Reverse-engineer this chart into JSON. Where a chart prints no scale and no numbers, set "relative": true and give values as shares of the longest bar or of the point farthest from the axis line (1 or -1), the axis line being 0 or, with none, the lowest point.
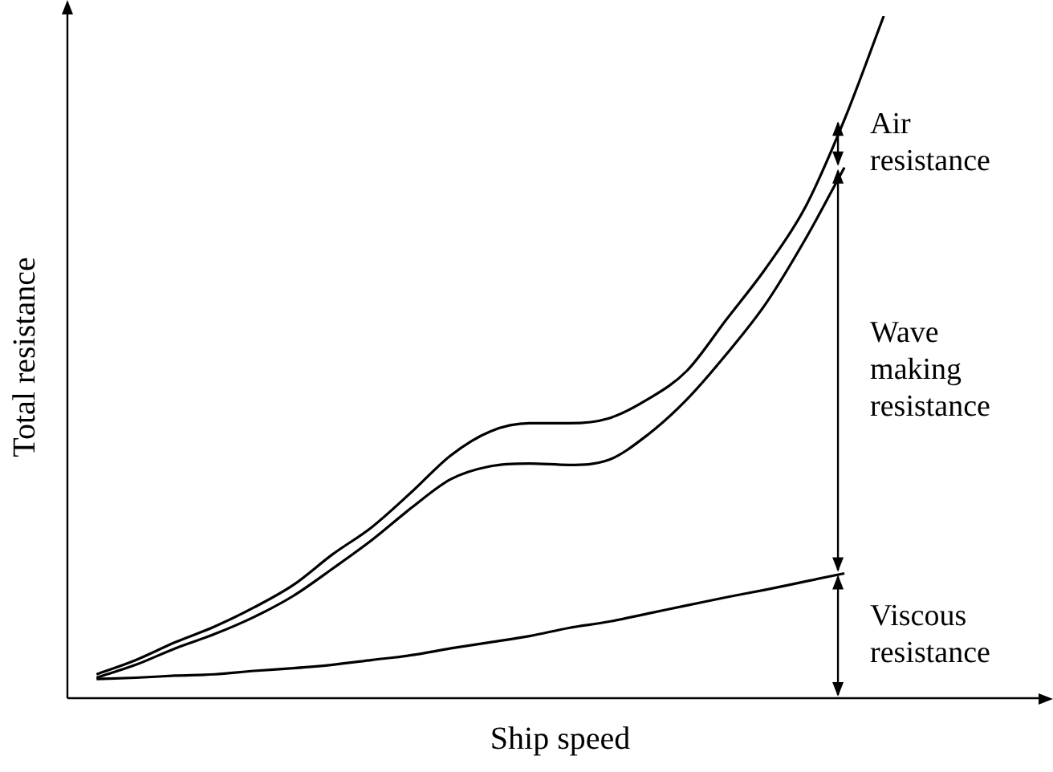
{
  "chart_data": {
    "type": "line",
    "relative": true,
    "xlabel": "Ship speed",
    "ylabel": "Total resistance",
    "categories": [
      null,
      null,
      null,
      null,
      null,
      null,
      null,
      null,
      null,
      null,
      null,
      null,
      null,
      null,
      null,
      null,
      null,
      null,
      null,
      null,
      null
    ],
    "series": [
      {
        "color": "#000000",
        "values": [
          0.035,
          0.056,
          0.082,
          0.105,
          0.133,
          0.166,
          0.211,
          0.251,
          0.302,
          0.356,
          0.391,
          0.403,
          0.403,
          0.41,
          0.438,
          0.48,
          0.555,
          0.63,
          0.719,
          0.848,
          1
        ]
      },
      {
        "color": "#000000",
        "values": [
          0.03,
          0.049,
          0.073,
          0.094,
          0.119,
          0.15,
          0.19,
          0.232,
          0.279,
          0.321,
          0.34,
          0.344,
          0.342,
          0.349,
          0.386,
          0.438,
          0.504,
          0.578,
          0.672,
          0.778,
          null
        ]
      },
      {
        "color": "#000000",
        "values": [
          0.028,
          0.03,
          0.033,
          0.035,
          0.04,
          0.044,
          0.049,
          0.056,
          0.063,
          0.073,
          0.082,
          0.091,
          0.103,
          0.112,
          0.124,
          0.136,
          0.148,
          0.159,
          0.171,
          0.183,
          null
        ]
      }
    ],
    "annotations": [
      "Air\nresistance",
      "Wave\nmaking\nresistance",
      "Viscous\nresistance"
    ],
    "grid": false,
    "legend": false,
    "marker": "none",
    "line_style": "solid"
  }
}
